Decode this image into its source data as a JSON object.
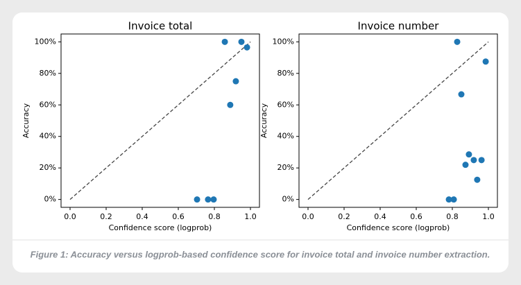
{
  "chart_data": [
    {
      "type": "scatter",
      "title": "Invoice total",
      "x_label": "Confidence score (logprob)",
      "y_label": "Accuracy",
      "x": [
        0.858,
        0.95,
        0.981,
        0.919,
        0.888,
        0.704,
        0.765,
        0.796
      ],
      "values": [
        100,
        100,
        96.5,
        75,
        60,
        0,
        0,
        0
      ],
      "color": "#1f77b4",
      "reference_line": {
        "x": [
          0,
          1
        ],
        "y": [
          0,
          100
        ]
      },
      "xlim": [
        -0.05,
        1.05
      ],
      "ylim": [
        -5,
        105
      ],
      "xticks": [
        {
          "value": 0,
          "label": "0.0"
        },
        0.2,
        0.4,
        0.6,
        0.8,
        {
          "value": 1,
          "label": "1.0"
        }
      ],
      "yticks": [
        {
          "value": 0,
          "label": "0%"
        },
        {
          "value": 20,
          "label": "20%"
        },
        {
          "value": 40,
          "label": "40%"
        },
        {
          "value": 60,
          "label": "60%"
        },
        {
          "value": 80,
          "label": "80%"
        },
        {
          "value": 100,
          "label": "100%"
        }
      ]
    },
    {
      "type": "scatter",
      "title": "Invoice number",
      "x_label": "Confidence score (logprob)",
      "y_label": "Accuracy",
      "x": [
        0.827,
        0.985,
        0.85,
        0.892,
        0.873,
        0.919,
        0.962,
        0.938,
        0.781,
        0.808
      ],
      "values": [
        100,
        87.5,
        66.7,
        28.6,
        22,
        25,
        25,
        12.5,
        0,
        0
      ],
      "color": "#1f77b4",
      "reference_line": {
        "x": [
          0,
          1
        ],
        "y": [
          0,
          100
        ]
      },
      "xlim": [
        -0.05,
        1.05
      ],
      "ylim": [
        -5,
        105
      ],
      "xticks": [
        {
          "value": 0,
          "label": "0.0"
        },
        0.2,
        0.4,
        0.6,
        0.8,
        {
          "value": 1,
          "label": "1.0"
        }
      ],
      "yticks": [
        {
          "value": 0,
          "label": "0%"
        },
        {
          "value": 20,
          "label": "20%"
        },
        {
          "value": 40,
          "label": "40%"
        },
        {
          "value": 60,
          "label": "60%"
        },
        {
          "value": 80,
          "label": "80%"
        },
        {
          "value": 100,
          "label": "100%"
        }
      ]
    }
  ],
  "caption": "Figure 1: Accuracy versus logprob-based confidence score for invoice total and invoice number extraction."
}
